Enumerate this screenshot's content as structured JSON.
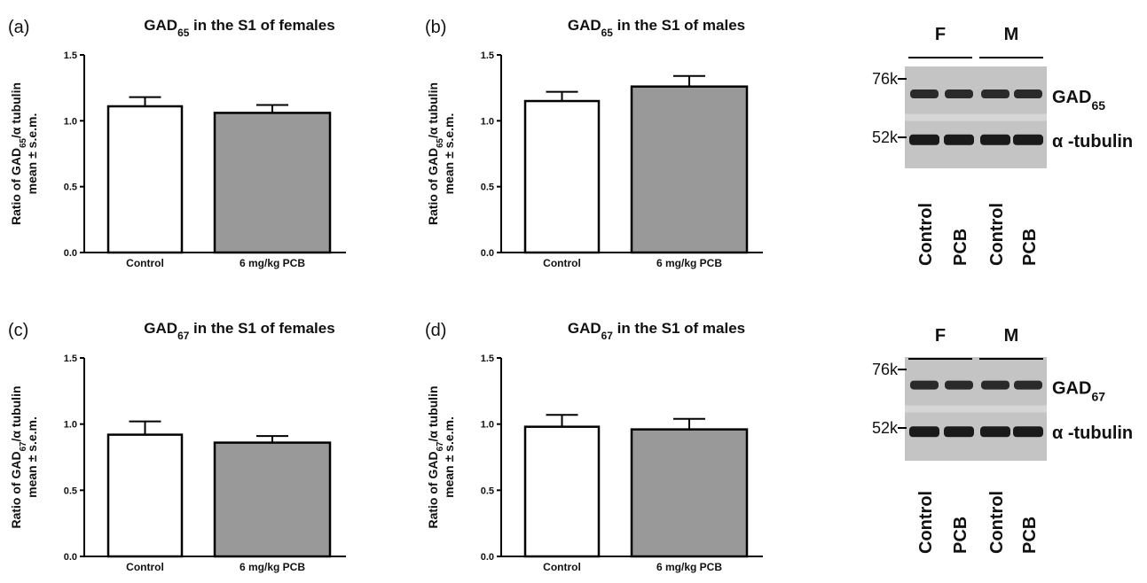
{
  "chart_data": [
    {
      "type": "bar",
      "panel": "(a)",
      "title_parts": [
        "GAD",
        "65",
        " in the S1 of females"
      ],
      "ylabel_parts": [
        "Ratio of GAD",
        "65",
        "/α tubulin"
      ],
      "ylabel2": "mean ± s.e.m.",
      "categories": [
        "Control",
        "6 mg/kg PCB"
      ],
      "values": [
        1.11,
        1.06
      ],
      "errors": [
        0.07,
        0.06
      ],
      "colors": [
        "#ffffff",
        "#999999"
      ],
      "ylim": [
        0,
        1.5
      ],
      "yticks": [
        {
          "value": 0,
          "label": "0.0"
        },
        0.5,
        {
          "value": 1,
          "label": "1.0"
        },
        1.5
      ]
    },
    {
      "type": "bar",
      "panel": "(b)",
      "title_parts": [
        "GAD",
        "65",
        " in the S1 of males"
      ],
      "ylabel_parts": [
        "Ratio of GAD",
        "65",
        "/α tubulin"
      ],
      "ylabel2": "mean ± s.e.m.",
      "categories": [
        "Control",
        "6 mg/kg PCB"
      ],
      "values": [
        1.15,
        1.26
      ],
      "errors": [
        0.07,
        0.08
      ],
      "colors": [
        "#ffffff",
        "#999999"
      ],
      "ylim": [
        0,
        1.5
      ],
      "yticks": [
        {
          "value": 0,
          "label": "0.0"
        },
        0.5,
        {
          "value": 1,
          "label": "1.0"
        },
        1.5
      ]
    },
    {
      "type": "bar",
      "panel": "(c)",
      "title_parts": [
        "GAD",
        "67",
        " in the S1 of females"
      ],
      "ylabel_parts": [
        "Ratio of GAD",
        "67",
        "/α tubulin"
      ],
      "ylabel2": "mean ± s.e.m.",
      "categories": [
        "Control",
        "6 mg/kg PCB"
      ],
      "values": [
        0.92,
        0.86
      ],
      "errors": [
        0.1,
        0.05
      ],
      "colors": [
        "#ffffff",
        "#999999"
      ],
      "ylim": [
        0,
        1.5
      ],
      "yticks": [
        {
          "value": 0,
          "label": "0.0"
        },
        0.5,
        {
          "value": 1,
          "label": "1.0"
        },
        1.5
      ]
    },
    {
      "type": "bar",
      "panel": "(d)",
      "title_parts": [
        "GAD",
        "67",
        " in the S1 of males"
      ],
      "ylabel_parts": [
        "Ratio of GAD",
        "67",
        "/α tubulin"
      ],
      "ylabel2": "mean ± s.e.m.",
      "categories": [
        "Control",
        "6 mg/kg PCB"
      ],
      "values": [
        0.98,
        0.96
      ],
      "errors": [
        0.09,
        0.08
      ],
      "colors": [
        "#ffffff",
        "#999999"
      ],
      "ylim": [
        0,
        1.5
      ],
      "yticks": [
        {
          "value": 0,
          "label": "0.0"
        },
        0.5,
        {
          "value": 1,
          "label": "1.0"
        },
        1.5
      ]
    }
  ],
  "blots": [
    {
      "groups": [
        "F",
        "M"
      ],
      "markers": [
        "76k",
        "52k"
      ],
      "band_parts": [
        "GAD",
        "65"
      ],
      "band2": "α -tubulin",
      "lanes": [
        "Control",
        "PCB",
        "Control",
        "PCB"
      ]
    },
    {
      "groups": [
        "F",
        "M"
      ],
      "markers": [
        "76k",
        "52k"
      ],
      "band_parts": [
        "GAD",
        "67"
      ],
      "band2": "α -tubulin",
      "lanes": [
        "Control",
        "PCB",
        "Control",
        "PCB"
      ]
    }
  ]
}
